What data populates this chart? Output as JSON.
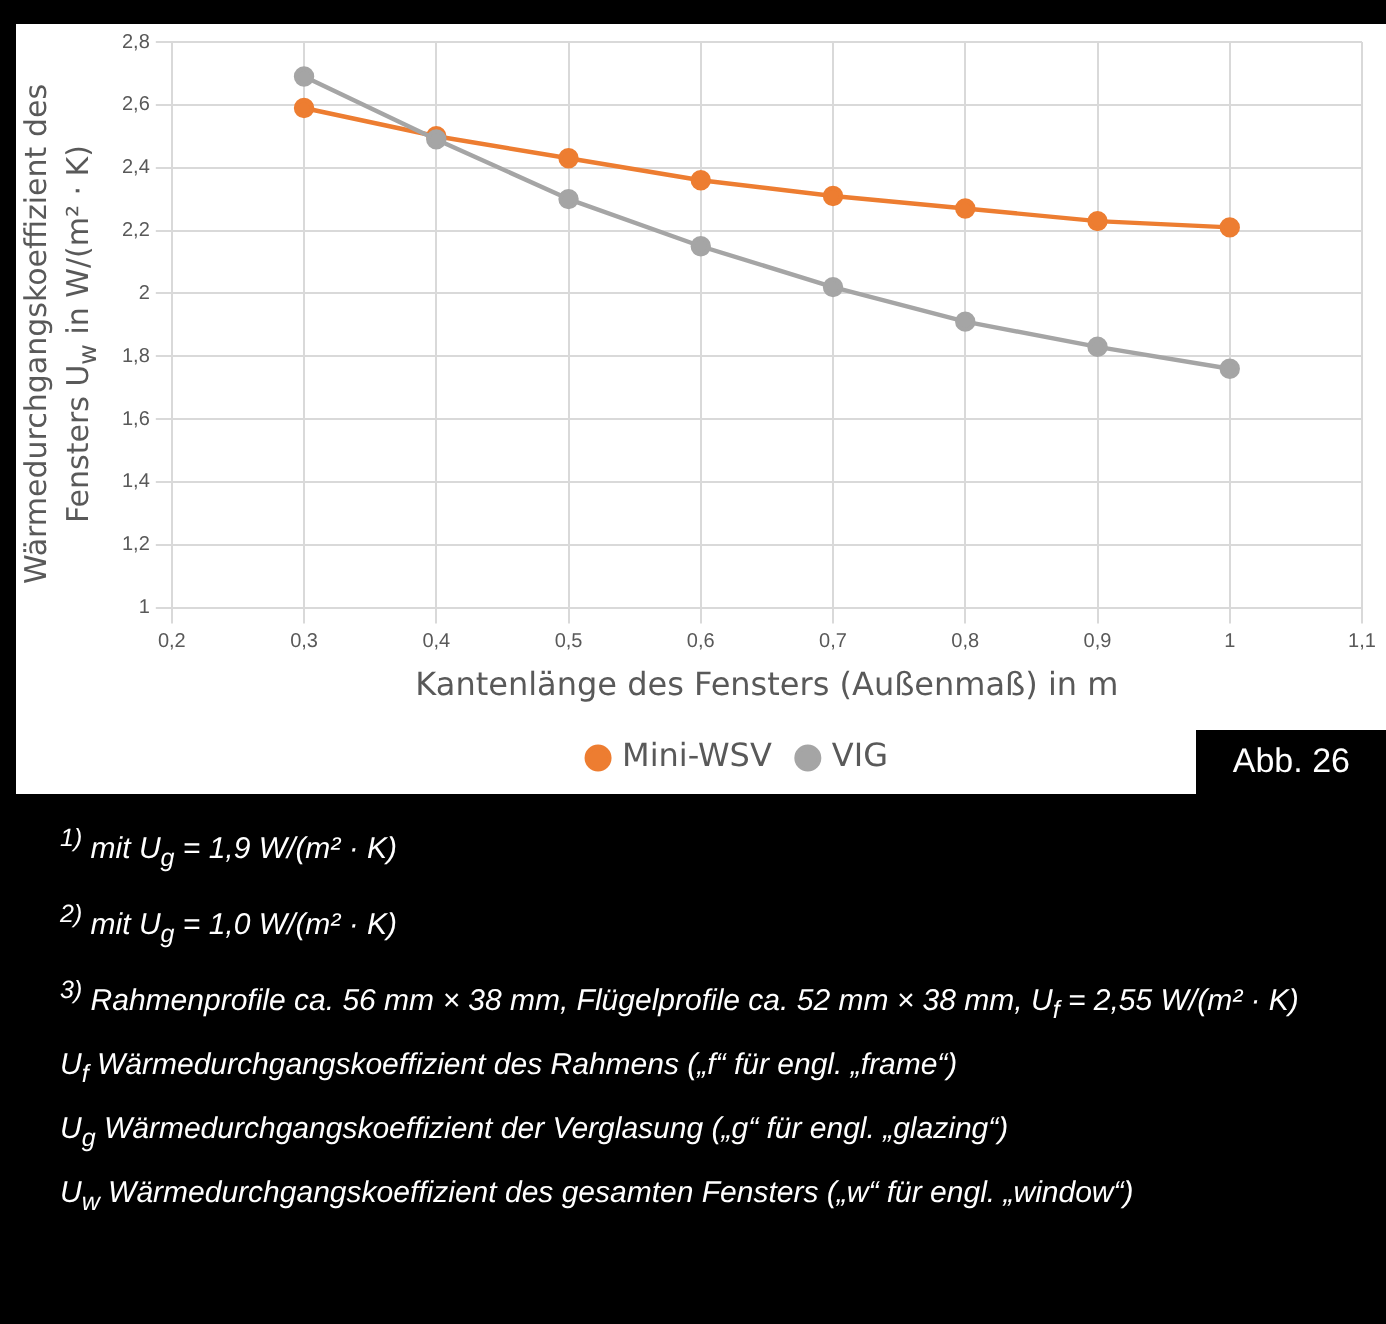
{
  "chart_data": {
    "type": "line",
    "xlabel": "Kantenlänge des Fensters (Außenmaß) in m",
    "ylabel": "Wärmedurchgangskoeffizient des Fensters U$_{w}$ in W/(m² · K)",
    "x": [
      0.3,
      0.4,
      0.5,
      0.6,
      0.7,
      0.8,
      0.9,
      1.0
    ],
    "series": [
      {
        "name": "Mini-WSV",
        "color": "#ed7d31",
        "values": [
          2.59,
          2.5,
          2.43,
          2.36,
          2.31,
          2.27,
          2.23,
          2.21
        ]
      },
      {
        "name": "VIG",
        "color": "#a5a5a5",
        "values": [
          2.69,
          2.49,
          2.3,
          2.15,
          2.02,
          1.91,
          1.83,
          1.76
        ]
      }
    ],
    "xlim": [
      0.2,
      1.1
    ],
    "xticks": [
      {
        "value": 0.2,
        "label": "0,2"
      },
      {
        "value": 0.3,
        "label": "0,3"
      },
      {
        "value": 0.4,
        "label": "0,4"
      },
      {
        "value": 0.5,
        "label": "0,5"
      },
      {
        "value": 0.6,
        "label": "0,6"
      },
      {
        "value": 0.7,
        "label": "0,7"
      },
      {
        "value": 0.8,
        "label": "0,8"
      },
      {
        "value": 0.9,
        "label": "0,9"
      },
      1,
      {
        "value": 1.1,
        "label": "1,1"
      }
    ],
    "ylim": [
      1,
      2.8
    ],
    "yticks": [
      1,
      {
        "value": 1.2,
        "label": "1,2"
      },
      {
        "value": 1.4,
        "label": "1,4"
      },
      {
        "value": 1.6,
        "label": "1,6"
      },
      {
        "value": 1.8,
        "label": "1,8"
      },
      2,
      {
        "value": 2.2,
        "label": "2,2"
      },
      {
        "value": 2.4,
        "label": "2,4"
      },
      {
        "value": 2.6,
        "label": "2,6"
      },
      {
        "value": 2.8,
        "label": "2,8"
      }
    ],
    "grid": true,
    "legend": "bottom",
    "marker": "circle",
    "line_style": "solid",
    "annotations": [
      "Abb. 26",
      "$^{1)}$ mit U$_{g}$ = 1,9 W/(m² · K)",
      "$^{2)}$ mit U$_{g}$ = 1,0 W/(m² · K)",
      "$^{3)}$ Rahmenprofile ca. 56 mm × 38 mm, Flügelprofile ca. 52 mm × 38 mm, U$_{f}$ = 2,55 W/(m² · K)",
      "U$_{f}$ Wärmedurchgangskoeffizient des Rahmens („f“ für engl. „frame“)",
      "U$_{g}$ Wärmedurchgangskoeffizient der Verglasung („g“ für engl. „glazing“)",
      "U$_{w}$ Wärmedurchgangskoeffizient des gesamten Fensters („w“ für engl. „window“)"
    ]
  }
}
